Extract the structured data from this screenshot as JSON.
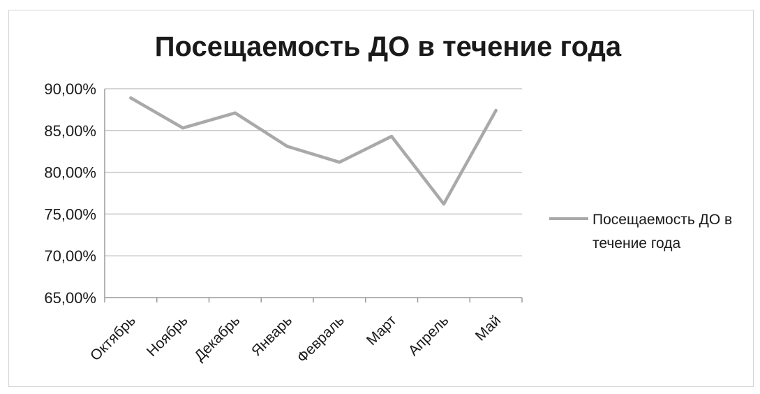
{
  "chart_data": {
    "type": "line",
    "title": "Посещаемость ДО в течение года",
    "categories": [
      "Октябрь",
      "Ноябрь",
      "Декабрь",
      "Январь",
      "Февраль",
      "Март",
      "Апрель",
      "Май"
    ],
    "series": [
      {
        "name": "Посещаемость ДО в течение года",
        "values": [
          88.9,
          85.3,
          87.1,
          83.1,
          81.2,
          84.3,
          76.2,
          87.4
        ],
        "color": "#a9a9a9"
      }
    ],
    "y_ticks": [
      "90,00%",
      "85,00%",
      "80,00%",
      "75,00%",
      "70,00%",
      "65,00%"
    ],
    "ylim": [
      65,
      90
    ],
    "y_unit": "percent",
    "grid": true,
    "legend": {
      "position": "right",
      "lines": [
        "Посещаемость ДО в",
        "течение года"
      ]
    },
    "colors": {
      "line": "#a9a9a9",
      "grid": "#c8c8c8",
      "axis": "#9a9a9a",
      "text": "#1a1a1a"
    }
  }
}
